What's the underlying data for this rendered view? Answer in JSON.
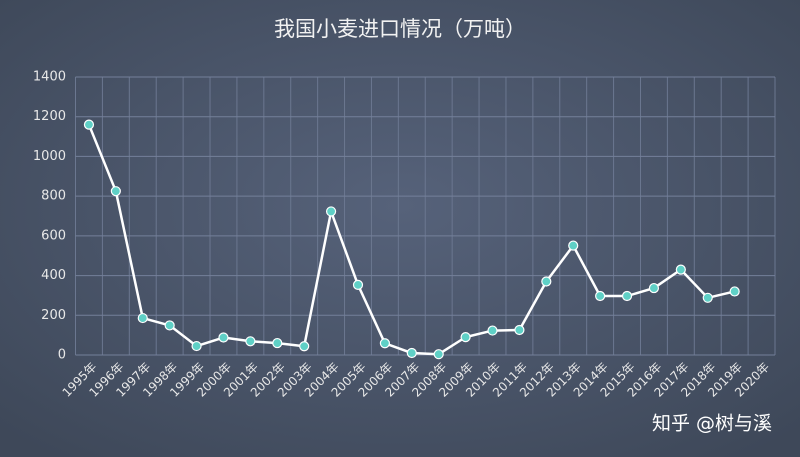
{
  "chart_data": {
    "type": "line",
    "title": "我国小麦进口情况（万吨）",
    "categories": [
      "1995年",
      "1996年",
      "1997年",
      "1998年",
      "1999年",
      "2000年",
      "2001年",
      "2002年",
      "2003年",
      "2004年",
      "2005年",
      "2006年",
      "2007年",
      "2008年",
      "2009年",
      "2010年",
      "2011年",
      "2012年",
      "2013年",
      "2014年",
      "2015年",
      "2016年",
      "2017年",
      "2018年",
      "2019年",
      "2020年"
    ],
    "values": [
      1160,
      825,
      186,
      149,
      45,
      88,
      69,
      60,
      44,
      723,
      353,
      59,
      10,
      4,
      90,
      123,
      126,
      370,
      551,
      297,
      297,
      337,
      430,
      288,
      320,
      null
    ],
    "color": "#ffffff",
    "marker_color": "#5fd0c6",
    "ylim": [
      0,
      1400
    ],
    "yticks": [
      0,
      200,
      400,
      600,
      800,
      1000,
      1200,
      1400
    ],
    "grid": true
  },
  "watermark": "知乎 @树与溪"
}
